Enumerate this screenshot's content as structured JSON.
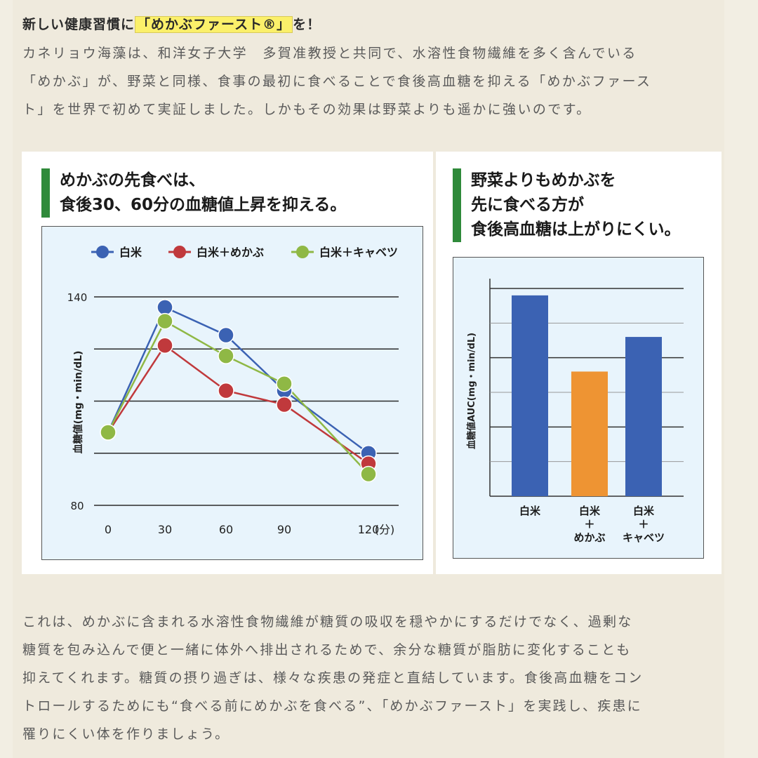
{
  "headline": {
    "pre": "新しい健康習慣に",
    "highlight": "「めかぶファースト®」",
    "post": "を！"
  },
  "intro_lines": [
    "カネリョウ海藻は、和洋女子大学　多賀准教授と共同で、水溶性食物繊維を多く含んでいる",
    "「めかぶ」が、野菜と同様、食事の最初に食べることで食後高血糖を抑える「めかぶファース",
    "ト」を世界で初めて実証しました。しかもその効果は野菜よりも遥かに強いのです。"
  ],
  "outro_lines": [
    "これは、めかぶに含まれる水溶性食物繊維が糖質の吸収を穏やかにするだけでなく、過剰な",
    "糖質を包み込んで便と一緒に体外へ排出されるためで、余分な糖質が脂肪に変化することも",
    "抑えてくれます。糖質の摂り過ぎは、様々な疾患の発症と直結しています。食後高血糖をコン",
    "トロールするためにも“食べる前にめかぶを食べる”、「めかぶファースト」を実践し、疾患に",
    "罹りにくい体を作りましょう。"
  ],
  "colors": {
    "blue": "#3b62b3",
    "red": "#c0393c",
    "green": "#8fb845",
    "orange": "#ee9433",
    "accent_green": "#2f8a3a"
  },
  "chart_data": [
    {
      "type": "line",
      "title_lines": [
        "めかぶの先食べは、",
        "食後30、60分の血糖値上昇を抑える。"
      ],
      "ylabel": "血糖値(mg・min/dL)",
      "x_unit": "(分)",
      "x": [
        0,
        30,
        60,
        90,
        120
      ],
      "x_tick_labels": [
        "0",
        "30",
        "60",
        "90",
        "120"
      ],
      "ylim": [
        80,
        140
      ],
      "y_tick_labels": [
        "140",
        "80"
      ],
      "grid": true,
      "legend": "top",
      "series": [
        {
          "name": "白米",
          "color": "#3b62b3",
          "values": [
            101,
            137,
            129,
            113,
            95
          ]
        },
        {
          "name": "白米＋めかぶ",
          "color": "#c0393c",
          "values": [
            101,
            126,
            113,
            109,
            92
          ]
        },
        {
          "name": "白米＋キャベツ",
          "color": "#8fb845",
          "values": [
            101,
            133,
            123,
            115,
            89
          ]
        }
      ]
    },
    {
      "type": "bar",
      "title_lines": [
        "野菜よりもめかぶを",
        "先に食べる方が",
        "食後高血糖は上がりにくい。"
      ],
      "ylabel": "血糖値AUC(mg・min/dL)",
      "categories": [
        [
          "白米"
        ],
        [
          "白米",
          "＋",
          "めかぶ"
        ],
        [
          "白米",
          "＋",
          "キャベツ"
        ]
      ],
      "values": [
        5.8,
        3.6,
        4.6
      ],
      "bar_colors": [
        "#3b62b3",
        "#ee9433",
        "#3b62b3"
      ],
      "ylim": [
        0,
        6
      ],
      "grid": true
    }
  ]
}
